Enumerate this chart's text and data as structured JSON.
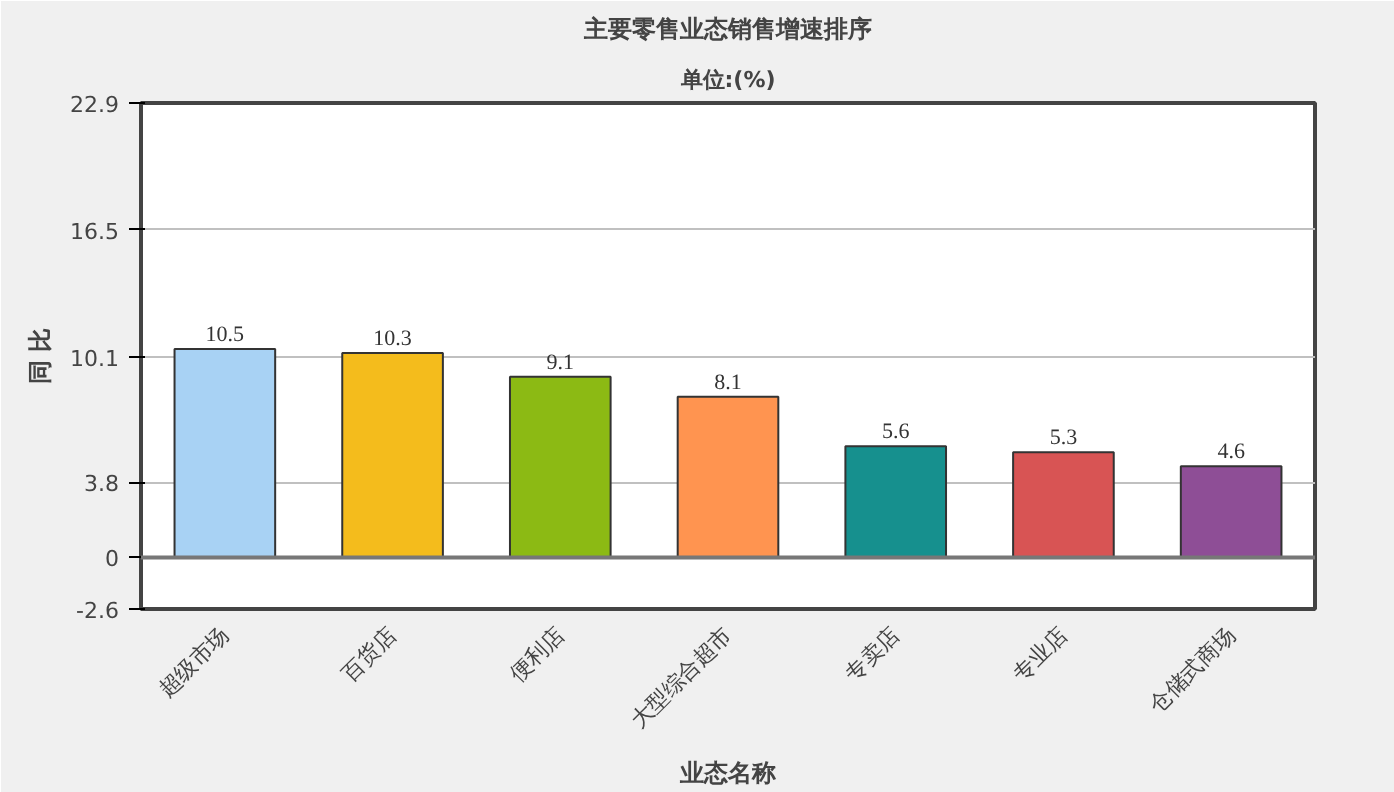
{
  "chart_data": {
    "type": "bar",
    "title": "主要零售业态销售增速排序",
    "subtitle": "单位:(%)",
    "xlabel": "业态名称",
    "ylabel": "同 比",
    "categories": [
      "超级市场",
      "百货店",
      "便利店",
      "大型综合超市",
      "专卖店",
      "专业店",
      "仓储式商场"
    ],
    "values": [
      10.5,
      10.3,
      9.1,
      8.1,
      5.6,
      5.3,
      4.6
    ],
    "colors": [
      "#a8d2f4",
      "#f4bc1c",
      "#8cba14",
      "#ff9450",
      "#16908e",
      "#d85454",
      "#8e4e96"
    ],
    "ylim": [
      -2.6,
      22.9
    ],
    "yticks": [
      -2.6,
      0,
      3.8,
      10.1,
      16.5,
      22.9
    ],
    "grid": "y",
    "data_labels": true
  }
}
